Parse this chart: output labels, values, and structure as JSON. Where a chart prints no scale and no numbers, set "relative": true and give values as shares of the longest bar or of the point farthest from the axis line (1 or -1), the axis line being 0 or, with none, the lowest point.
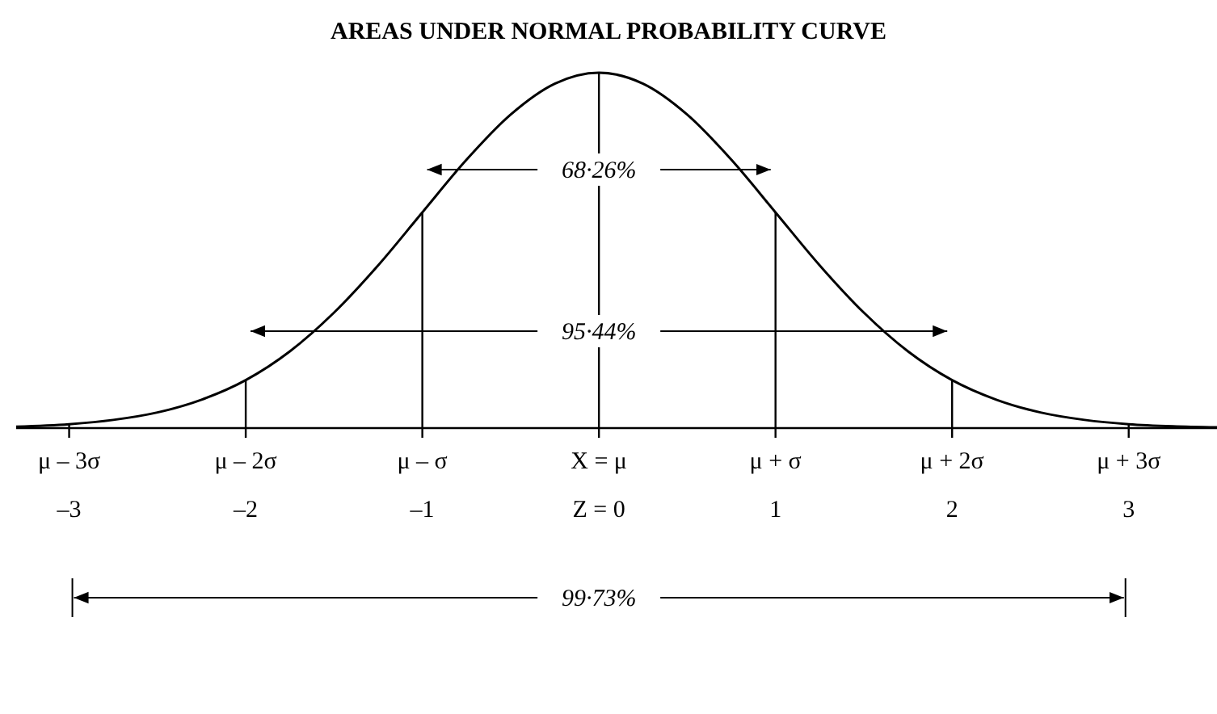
{
  "chart_data": {
    "type": "line",
    "title": "AREAS UNDER NORMAL PROBABILITY CURVE",
    "relative": true,
    "x": [
      -3.3,
      -3,
      -2.75,
      -2.5,
      -2.25,
      -2,
      -1.75,
      -1.5,
      -1.25,
      -1,
      -0.75,
      -0.5,
      -0.25,
      0,
      0.25,
      0.5,
      0.75,
      1,
      1.25,
      1.5,
      1.75,
      2,
      2.25,
      2.5,
      2.75,
      3,
      3.25,
      3.5
    ],
    "series": [
      {
        "color": "#000000",
        "values": [
          0.004,
          0.011,
          0.023,
          0.044,
          0.08,
          0.135,
          0.216,
          0.325,
          0.458,
          0.607,
          0.755,
          0.882,
          0.969,
          1,
          0.969,
          0.882,
          0.755,
          0.607,
          0.458,
          0.325,
          0.216,
          0.135,
          0.08,
          0.044,
          0.023,
          0.011,
          0.005,
          0.002
        ]
      },
      {
        "type": "bar",
        "color": "#000000",
        "x": [
          -3,
          -2,
          -1,
          0,
          1,
          2,
          3
        ],
        "values": [
          0.011,
          0.135,
          0.607,
          1,
          0.607,
          0.135,
          0.011
        ]
      }
    ],
    "xlim": [
      -3.3,
      3.5
    ],
    "xticks": [
      {
        "value": -3,
        "label": "μ – 3σ\n–3"
      },
      {
        "value": -2,
        "label": "μ – 2σ\n–2"
      },
      {
        "value": -1,
        "label": "μ – σ\n–1"
      },
      {
        "value": 0,
        "label": "X = μ\nZ = 0"
      },
      {
        "value": 1,
        "label": "μ + σ\n1"
      },
      {
        "value": 2,
        "label": "μ + 2σ\n2"
      },
      {
        "value": 3,
        "label": "μ + 3σ\n3"
      }
    ],
    "annotations": [
      "68·26%",
      "95·44%",
      "99·73%"
    ]
  }
}
